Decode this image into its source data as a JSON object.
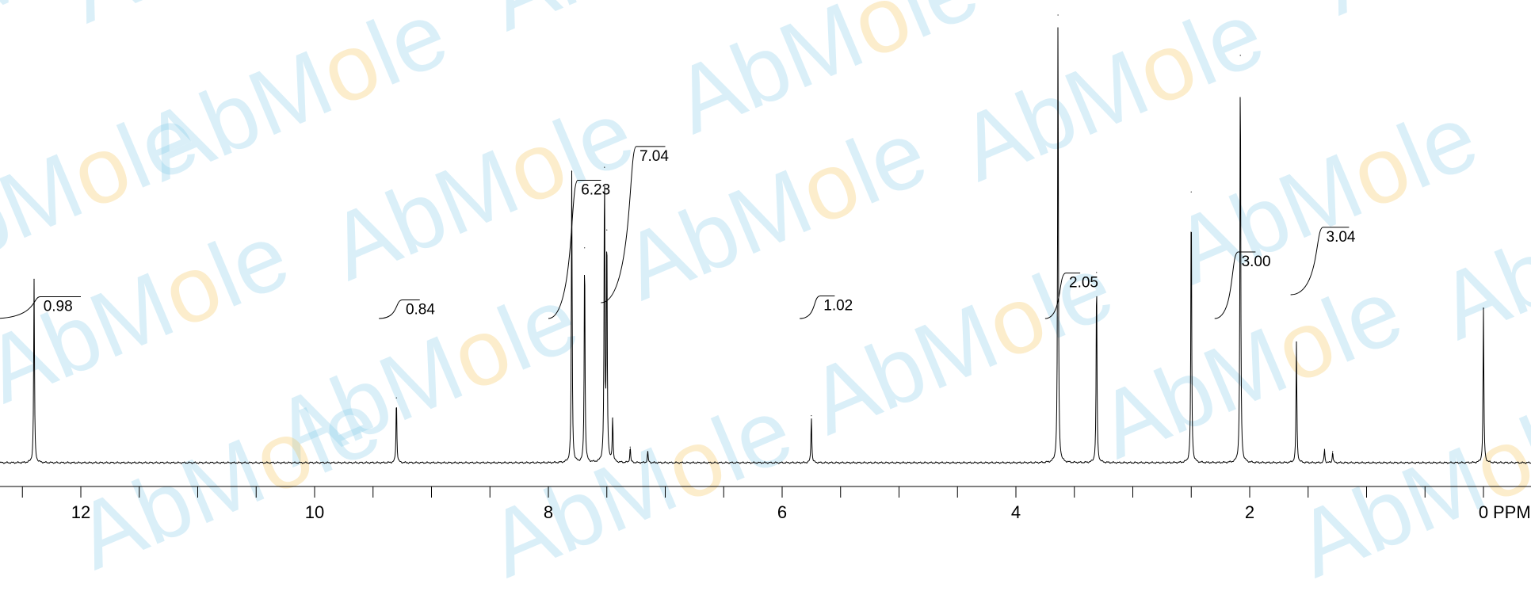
{
  "watermark": {
    "text": "AbMole"
  },
  "chart_data": {
    "type": "line",
    "title": "",
    "xlabel": "",
    "ylabel": "",
    "x_unit_label": "PPM",
    "xlim": [
      13.0,
      -0.5
    ],
    "x_direction": "descending",
    "tick_labels": [
      "12",
      "10",
      "8",
      "6",
      "4",
      "2",
      "0"
    ],
    "tick_values": [
      12,
      10,
      8,
      6,
      4,
      2,
      0
    ],
    "y_scale": "relative intensity (0-100)",
    "peaks": [
      {
        "ppm": 12.4,
        "intensity": 41
      },
      {
        "ppm": 9.3,
        "intensity": 14.5
      },
      {
        "ppm": 7.8,
        "intensity": 65
      },
      {
        "ppm": 7.69,
        "intensity": 48
      },
      {
        "ppm": 7.52,
        "intensity": 66
      },
      {
        "ppm": 7.5,
        "intensity": 52
      },
      {
        "ppm": 7.45,
        "intensity": 10
      },
      {
        "ppm": 7.3,
        "intensity": 3.5
      },
      {
        "ppm": 7.15,
        "intensity": 2.5
      },
      {
        "ppm": 5.75,
        "intensity": 10.5
      },
      {
        "ppm": 3.64,
        "intensity": 100
      },
      {
        "ppm": 3.31,
        "intensity": 42.5
      },
      {
        "ppm": 2.5,
        "intensity": 60.5
      },
      {
        "ppm": 2.08,
        "intensity": 91
      },
      {
        "ppm": 1.6,
        "intensity": 27
      },
      {
        "ppm": 1.36,
        "intensity": 3
      },
      {
        "ppm": 1.29,
        "intensity": 2.5
      },
      {
        "ppm": 0.0,
        "intensity": 34.5
      }
    ],
    "integrals": [
      {
        "label": "0.98",
        "from": 12.75,
        "to": 12.0
      },
      {
        "label": "0.84",
        "from": 9.45,
        "to": 9.1
      },
      {
        "label": "6.23",
        "from": 8.0,
        "to": 7.55
      },
      {
        "label": "7.04",
        "from": 7.55,
        "to": 7.0
      },
      {
        "label": "1.02",
        "from": 5.85,
        "to": 5.55
      },
      {
        "label": "2.05",
        "from": 3.75,
        "to": 3.45
      },
      {
        "label": "3.00",
        "from": 2.3,
        "to": 1.95
      },
      {
        "label": "3.04",
        "from": 1.65,
        "to": 1.15
      }
    ]
  }
}
